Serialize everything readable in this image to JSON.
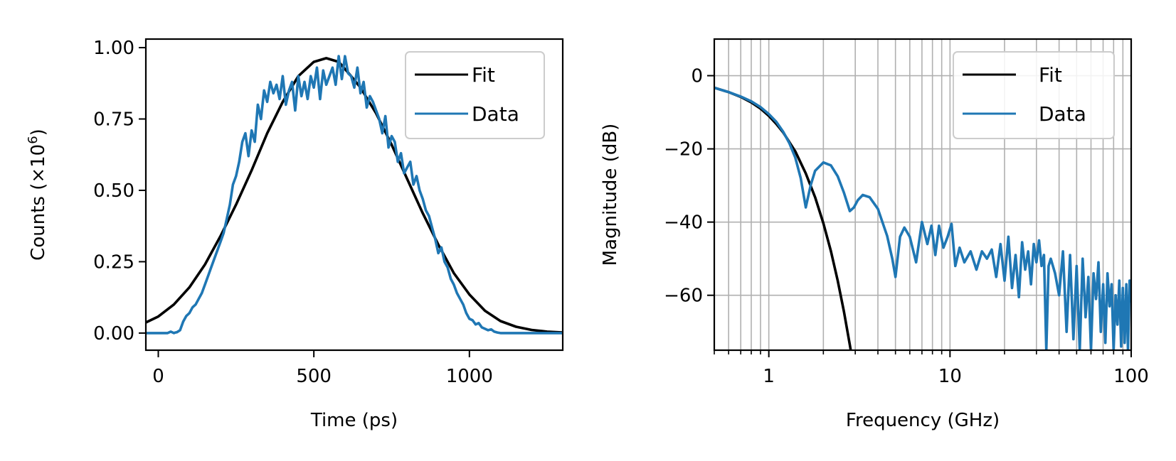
{
  "chart_data": [
    {
      "type": "line",
      "xlabel": "Time (ps)",
      "ylabel_main": "Counts (×10",
      "ylabel_sup": "6",
      "ylabel_tail": ")",
      "xlim": [
        -40,
        1300
      ],
      "ylim": [
        -0.06,
        1.03
      ],
      "xticks": [
        0,
        500,
        1000
      ],
      "xtick_labels": [
        "0",
        "500",
        "1000"
      ],
      "yticks": [
        0.0,
        0.25,
        0.5,
        0.75,
        1.0
      ],
      "ytick_labels": [
        "0.00",
        "0.25",
        "0.50",
        "0.75",
        "1.00"
      ],
      "grid": false,
      "legend_position": "top-right",
      "series": [
        {
          "name": "Fit",
          "color": "#000000",
          "x": [
            -40,
            0,
            50,
            100,
            150,
            200,
            250,
            300,
            350,
            400,
            450,
            500,
            540,
            580,
            620,
            650,
            700,
            750,
            800,
            850,
            900,
            950,
            1000,
            1050,
            1100,
            1150,
            1200,
            1250,
            1300
          ],
          "y": [
            0.037,
            0.058,
            0.1,
            0.16,
            0.24,
            0.34,
            0.45,
            0.57,
            0.7,
            0.81,
            0.9,
            0.95,
            0.963,
            0.95,
            0.9,
            0.86,
            0.77,
            0.66,
            0.54,
            0.42,
            0.31,
            0.21,
            0.135,
            0.078,
            0.042,
            0.022,
            0.011,
            0.005,
            0.002
          ]
        },
        {
          "name": "Data",
          "color": "#1f77b4",
          "x": [
            -40,
            0,
            30,
            40,
            50,
            55,
            60,
            70,
            80,
            90,
            100,
            110,
            120,
            130,
            140,
            150,
            160,
            170,
            180,
            190,
            200,
            210,
            220,
            230,
            240,
            250,
            260,
            270,
            280,
            290,
            300,
            310,
            320,
            330,
            340,
            350,
            360,
            370,
            380,
            390,
            400,
            410,
            420,
            430,
            440,
            450,
            460,
            470,
            480,
            490,
            500,
            510,
            520,
            530,
            540,
            550,
            560,
            570,
            580,
            590,
            600,
            610,
            620,
            630,
            640,
            650,
            660,
            670,
            680,
            690,
            700,
            710,
            720,
            730,
            740,
            750,
            760,
            770,
            780,
            790,
            800,
            810,
            820,
            830,
            840,
            850,
            860,
            870,
            880,
            890,
            900,
            910,
            920,
            930,
            940,
            950,
            960,
            970,
            980,
            990,
            1000,
            1010,
            1020,
            1030,
            1040,
            1050,
            1060,
            1070,
            1080,
            1090,
            1100,
            1150,
            1200,
            1300
          ],
          "y": [
            0.0,
            0.0,
            0.0,
            0.005,
            0.0,
            0.002,
            0.003,
            0.01,
            0.04,
            0.06,
            0.07,
            0.09,
            0.1,
            0.12,
            0.14,
            0.17,
            0.2,
            0.23,
            0.26,
            0.29,
            0.32,
            0.35,
            0.4,
            0.45,
            0.52,
            0.55,
            0.6,
            0.67,
            0.7,
            0.62,
            0.71,
            0.67,
            0.8,
            0.75,
            0.85,
            0.81,
            0.88,
            0.84,
            0.87,
            0.82,
            0.9,
            0.8,
            0.85,
            0.88,
            0.78,
            0.9,
            0.83,
            0.88,
            0.82,
            0.9,
            0.86,
            0.93,
            0.82,
            0.92,
            0.87,
            0.9,
            0.93,
            0.87,
            0.97,
            0.89,
            0.97,
            0.91,
            0.9,
            0.86,
            0.93,
            0.84,
            0.88,
            0.79,
            0.83,
            0.81,
            0.78,
            0.75,
            0.7,
            0.76,
            0.65,
            0.69,
            0.67,
            0.6,
            0.63,
            0.56,
            0.58,
            0.6,
            0.52,
            0.55,
            0.5,
            0.47,
            0.43,
            0.41,
            0.37,
            0.33,
            0.28,
            0.3,
            0.25,
            0.23,
            0.19,
            0.17,
            0.14,
            0.12,
            0.1,
            0.07,
            0.05,
            0.045,
            0.03,
            0.035,
            0.02,
            0.015,
            0.01,
            0.013,
            0.005,
            0.002,
            0.0,
            0.0,
            0.0,
            0.0
          ]
        }
      ]
    },
    {
      "type": "line",
      "xlabel": "Frequency (GHz)",
      "ylabel": "Magnitude (dB)",
      "xscale": "log",
      "xlim": [
        0.5,
        100
      ],
      "ylim": [
        -75,
        10
      ],
      "xticks": [
        1,
        10,
        100
      ],
      "xtick_labels": [
        "1",
        "10",
        "100"
      ],
      "yticks": [
        0,
        -20,
        -40,
        -60
      ],
      "ytick_labels": [
        "0",
        "−20",
        "−40",
        "−60"
      ],
      "grid": true,
      "legend_position": "top-right",
      "series": [
        {
          "name": "Fit",
          "color": "#000000",
          "x": [
            0.5,
            0.6,
            0.7,
            0.8,
            0.9,
            1.0,
            1.1,
            1.2,
            1.4,
            1.6,
            1.8,
            2.0,
            2.2,
            2.4,
            2.6,
            2.8,
            2.9
          ],
          "y": [
            -3.3,
            -4.5,
            -5.8,
            -7.3,
            -9.0,
            -11.0,
            -13.2,
            -15.5,
            -20.7,
            -26.7,
            -33.2,
            -40.3,
            -47.9,
            -56.0,
            -64.5,
            -73.5,
            -78.0
          ]
        },
        {
          "name": "Data",
          "color": "#1f77b4",
          "x": [
            0.5,
            0.6,
            0.7,
            0.8,
            0.9,
            1.0,
            1.1,
            1.2,
            1.3,
            1.4,
            1.5,
            1.6,
            1.7,
            1.8,
            2.0,
            2.2,
            2.4,
            2.6,
            2.8,
            2.95,
            3.1,
            3.3,
            3.6,
            4.0,
            4.5,
            4.8,
            5.0,
            5.3,
            5.6,
            6.0,
            6.5,
            7.0,
            7.5,
            7.9,
            8.3,
            8.7,
            9.2,
            9.7,
            10.2,
            10.7,
            11.3,
            12.0,
            13,
            14,
            15,
            16,
            17,
            18,
            19,
            20,
            21,
            22,
            23,
            24,
            25,
            26,
            27,
            28,
            29,
            30,
            31,
            32,
            33,
            34,
            35,
            36,
            38,
            40,
            42,
            44,
            46,
            48,
            50,
            52,
            54,
            56,
            58,
            60,
            62,
            64,
            66,
            68,
            70,
            72,
            74,
            76,
            78,
            80,
            82,
            84,
            86,
            88,
            90,
            92,
            94,
            96,
            98,
            100
          ],
          "y": [
            -3.3,
            -4.5,
            -5.7,
            -7.0,
            -8.6,
            -10.5,
            -12.6,
            -15.3,
            -18.5,
            -22.4,
            -28.0,
            -36.0,
            -30.0,
            -26.0,
            -23.7,
            -24.5,
            -27.5,
            -32.0,
            -37.0,
            -36.0,
            -34.0,
            -32.6,
            -33.2,
            -36.4,
            -43.8,
            -50.0,
            -55.0,
            -44.0,
            -41.5,
            -44.0,
            -51.0,
            -40.0,
            -46.0,
            -41.0,
            -49.0,
            -41.0,
            -47.0,
            -44.0,
            -40.5,
            -52.0,
            -47.0,
            -51.0,
            -48.0,
            -53.0,
            -48.0,
            -50.0,
            -47.5,
            -55.0,
            -46.0,
            -56.0,
            -44.0,
            -58.0,
            -49.0,
            -60.5,
            -45.5,
            -53.0,
            -48.0,
            -57.0,
            -46.0,
            -51.0,
            -45.0,
            -52.0,
            -49.0,
            -75.0,
            -52.0,
            -50.0,
            -54.0,
            -60.0,
            -48.0,
            -70.0,
            -49.0,
            -72.0,
            -52.0,
            -75.0,
            -50.0,
            -66.0,
            -55.0,
            -75.0,
            -54.0,
            -61.0,
            -51.0,
            -70.0,
            -57.0,
            -73.0,
            -54.0,
            -63.0,
            -57.0,
            -75.0,
            -60.0,
            -68.0,
            -56.0,
            -74.0,
            -58.0,
            -73.0,
            -57.0,
            -75.0,
            -56.0,
            -62.0
          ]
        }
      ]
    }
  ]
}
